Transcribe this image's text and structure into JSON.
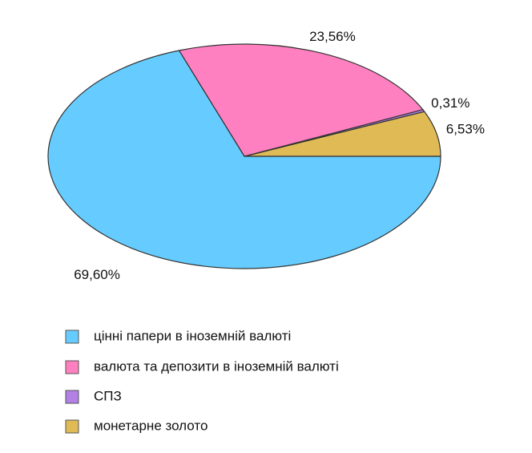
{
  "chart_data": {
    "type": "pie",
    "categories": [
      "цінні папери в іноземній валюті",
      "валюта та депозити в іноземній валюті",
      "СПЗ",
      "монетарне золото"
    ],
    "values": [
      69.6,
      23.56,
      0.31,
      6.53
    ],
    "value_labels": [
      "69,60%",
      "23,56%",
      "0,31%",
      "6,53%"
    ],
    "colors": [
      "#66ccff",
      "#ff80c0",
      "#b380e6",
      "#e0bb55"
    ]
  }
}
